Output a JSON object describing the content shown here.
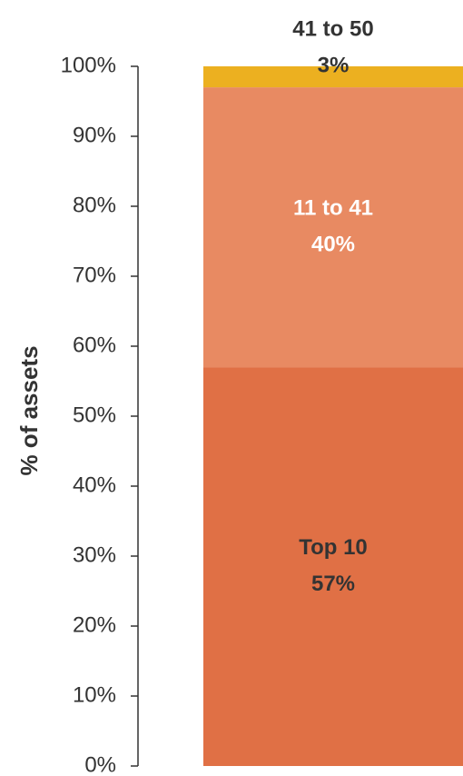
{
  "chart_data": {
    "type": "stacked_bar",
    "y_label": "% of assets",
    "series": [
      {
        "name": "Top 10",
        "color": "#e07045",
        "label_color": "#333333",
        "values": [
          57
        ],
        "value_labels": [
          "57%"
        ]
      },
      {
        "name": "11 to 41",
        "color": "#e88a62",
        "label_color": "#ffffff",
        "values": [
          40
        ],
        "value_labels": [
          "40%"
        ]
      },
      {
        "name": "41 to 50",
        "color": "#ecb020",
        "label_color": "#333333",
        "values": [
          3
        ],
        "value_labels": [
          "3%"
        ]
      }
    ],
    "ylim": [
      0,
      100
    ],
    "yticks": [
      {
        "value": 0,
        "label": "0%"
      },
      {
        "value": 10,
        "label": "10%"
      },
      {
        "value": 20,
        "label": "20%"
      },
      {
        "value": 30,
        "label": "30%"
      },
      {
        "value": 40,
        "label": "40%"
      },
      {
        "value": 50,
        "label": "50%"
      },
      {
        "value": 60,
        "label": "60%"
      },
      {
        "value": 70,
        "label": "70%"
      },
      {
        "value": 80,
        "label": "80%"
      },
      {
        "value": 90,
        "label": "90%"
      },
      {
        "value": 100,
        "label": "100%"
      }
    ]
  }
}
